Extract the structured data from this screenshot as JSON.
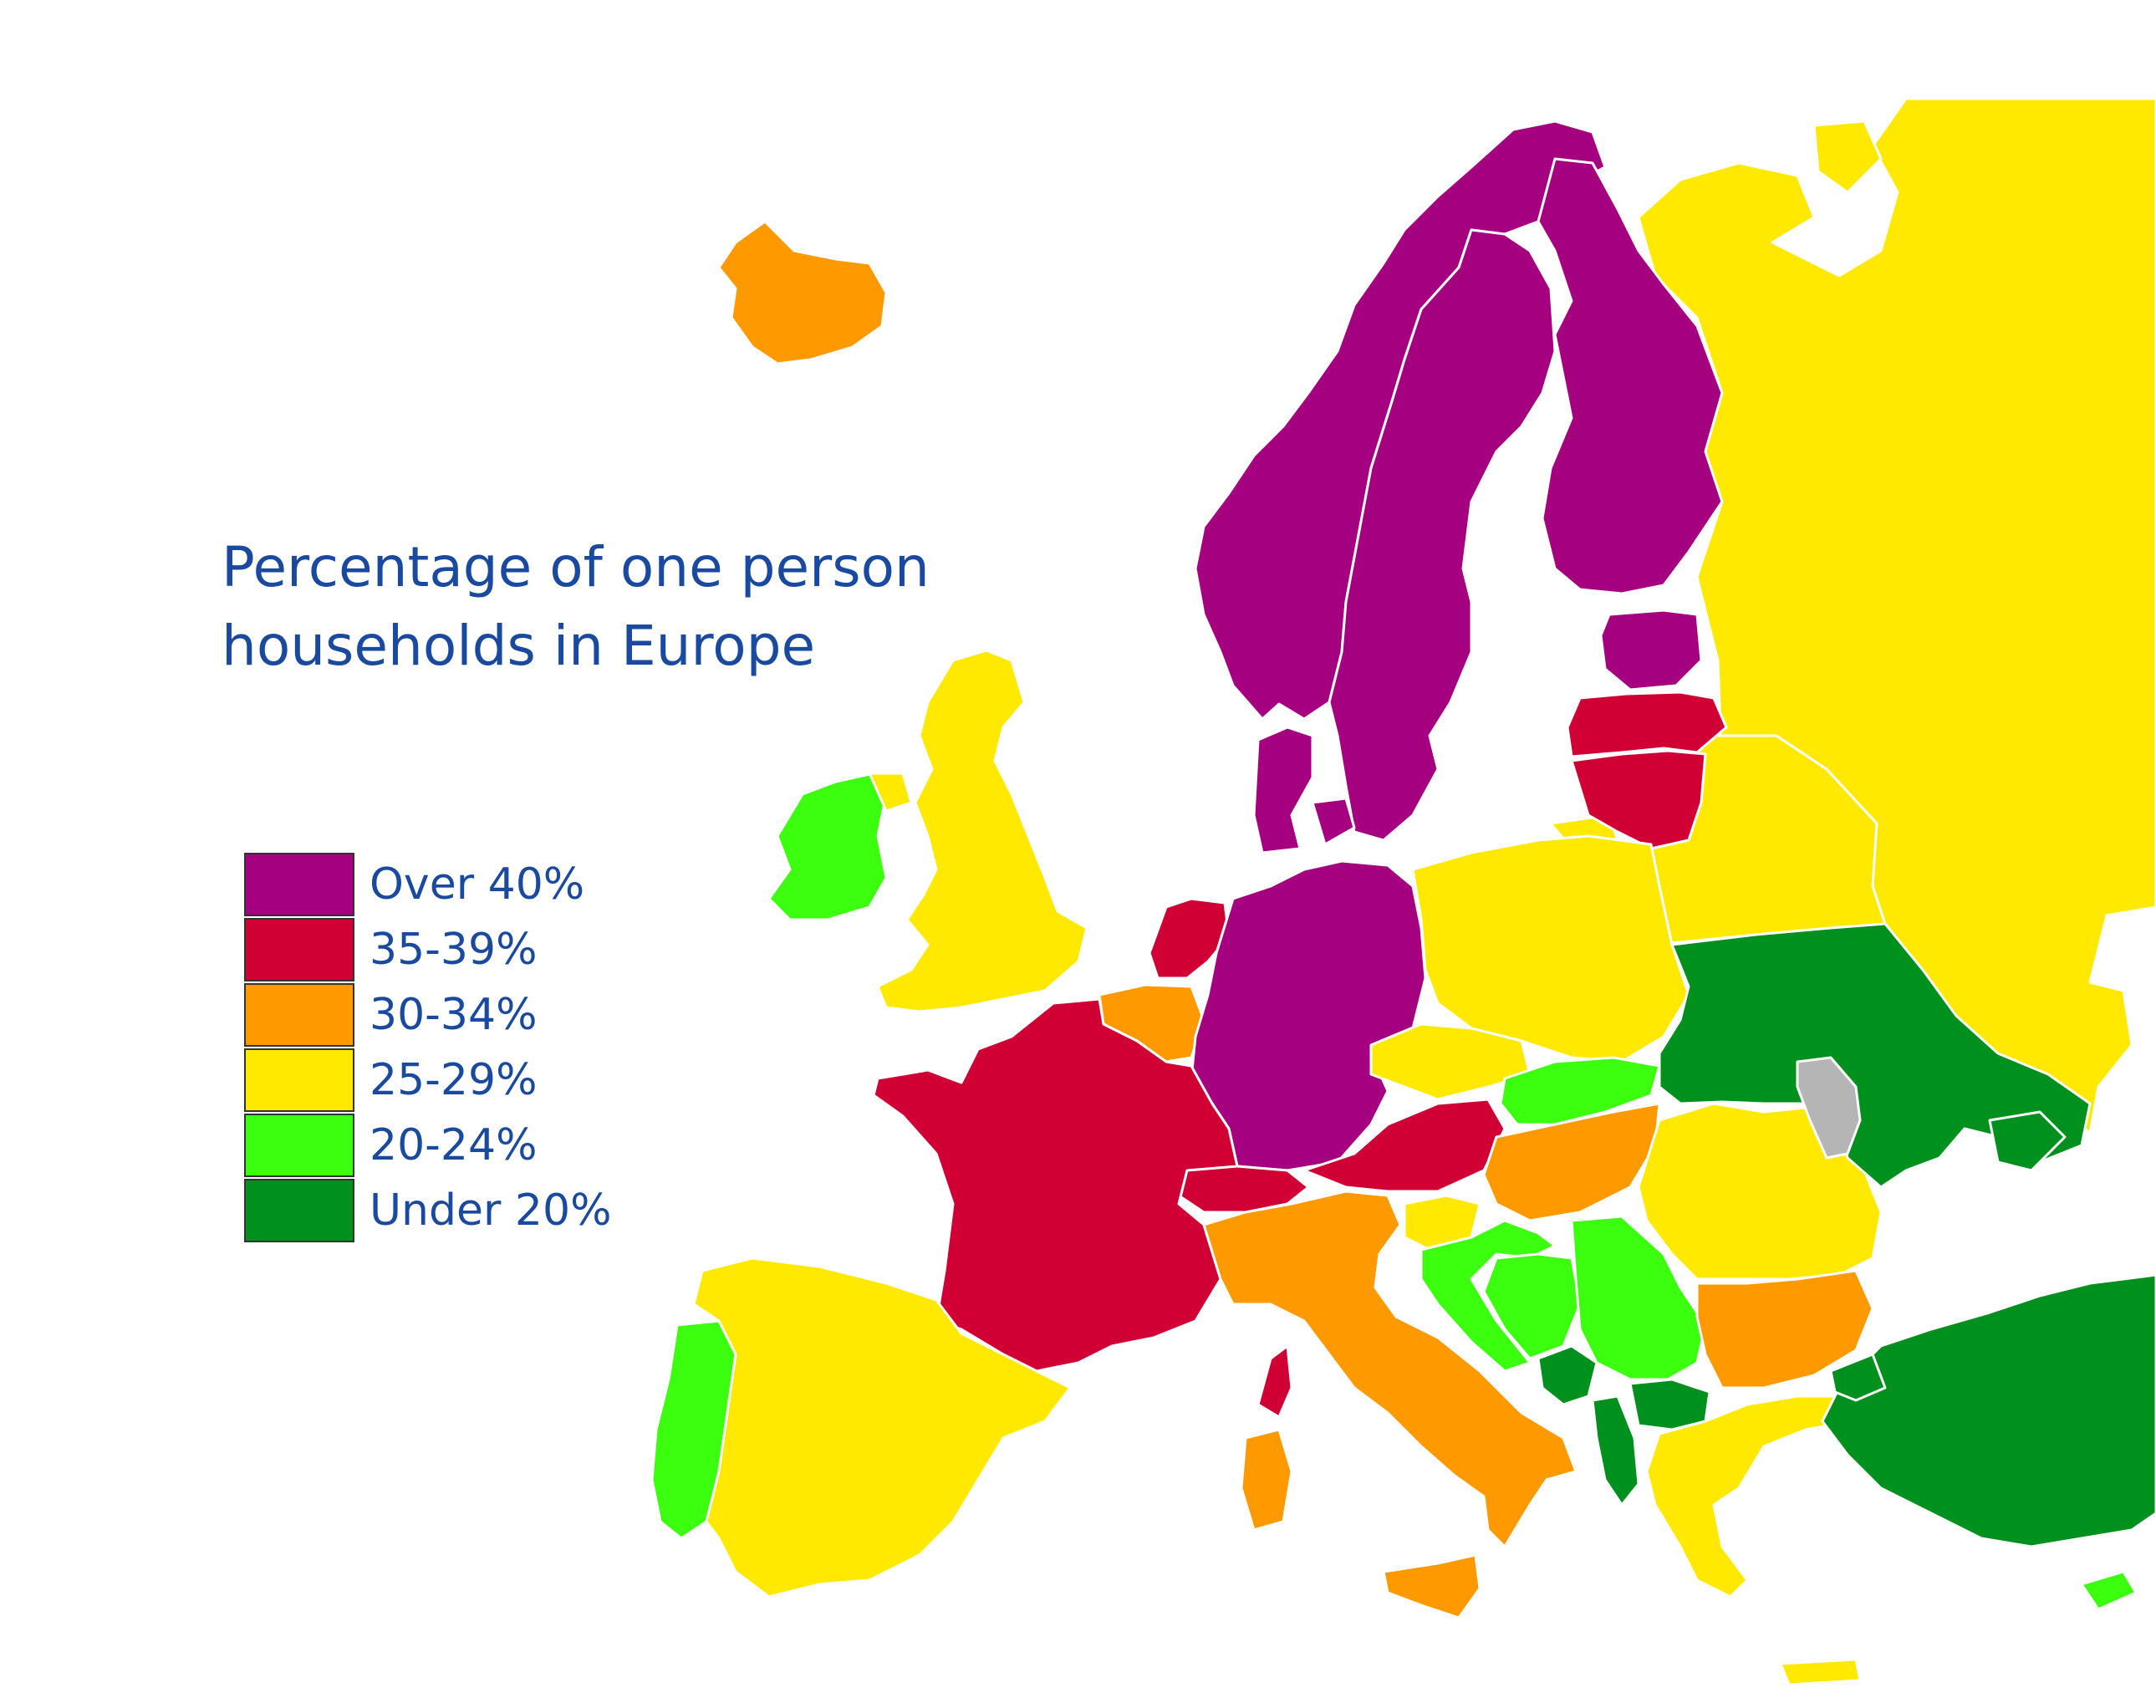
{
  "title": "Percentage of one person\nhouseholds in Europe",
  "legend": [
    {
      "label": "Over 40%",
      "color": "#a5007f"
    },
    {
      "label": "35-39%",
      "color": "#d10034"
    },
    {
      "label": "30-34%",
      "color": "#ff9900"
    },
    {
      "label": "25-29%",
      "color": "#ffe900"
    },
    {
      "label": "20-24%",
      "color": "#3cff0f"
    },
    {
      "label": "Under 20%",
      "color": "#00901e"
    }
  ],
  "no_data_color": "#b5b5b5",
  "countries": [
    {
      "name": "Norway",
      "category": "Over 40%"
    },
    {
      "name": "Sweden",
      "category": "Over 40%"
    },
    {
      "name": "Finland",
      "category": "Over 40%"
    },
    {
      "name": "Denmark",
      "category": "Over 40%"
    },
    {
      "name": "Estonia",
      "category": "Over 40%"
    },
    {
      "name": "Germany",
      "category": "Over 40%"
    },
    {
      "name": "Latvia",
      "category": "35-39%"
    },
    {
      "name": "Lithuania",
      "category": "35-39%"
    },
    {
      "name": "Netherlands",
      "category": "35-39%"
    },
    {
      "name": "France",
      "category": "35-39%"
    },
    {
      "name": "Switzerland",
      "category": "35-39%"
    },
    {
      "name": "Austria",
      "category": "35-39%"
    },
    {
      "name": "Corsica",
      "category": "35-39%"
    },
    {
      "name": "Iceland",
      "category": "30-34%"
    },
    {
      "name": "Belgium",
      "category": "30-34%"
    },
    {
      "name": "Italy",
      "category": "30-34%"
    },
    {
      "name": "Sardinia",
      "category": "30-34%"
    },
    {
      "name": "Sicily",
      "category": "30-34%"
    },
    {
      "name": "Hungary",
      "category": "30-34%"
    },
    {
      "name": "Bulgaria",
      "category": "30-34%"
    },
    {
      "name": "United Kingdom",
      "category": "25-29%"
    },
    {
      "name": "Spain",
      "category": "25-29%"
    },
    {
      "name": "Poland",
      "category": "25-29%"
    },
    {
      "name": "Czechia",
      "category": "25-29%"
    },
    {
      "name": "Slovenia",
      "category": "25-29%"
    },
    {
      "name": "Romania",
      "category": "25-29%"
    },
    {
      "name": "Greece",
      "category": "25-29%"
    },
    {
      "name": "Belarus",
      "category": "25-29%"
    },
    {
      "name": "Russia",
      "category": "25-29%"
    },
    {
      "name": "Ireland",
      "category": "20-24%"
    },
    {
      "name": "Portugal",
      "category": "20-24%"
    },
    {
      "name": "Slovakia",
      "category": "20-24%"
    },
    {
      "name": "Croatia",
      "category": "20-24%"
    },
    {
      "name": "Bosnia and Herzegovina",
      "category": "20-24%"
    },
    {
      "name": "Serbia",
      "category": "20-24%"
    },
    {
      "name": "Cyprus",
      "category": "20-24%"
    },
    {
      "name": "Ukraine",
      "category": "Under 20%"
    },
    {
      "name": "Montenegro",
      "category": "Under 20%"
    },
    {
      "name": "Albania",
      "category": "Under 20%"
    },
    {
      "name": "North Macedonia",
      "category": "Under 20%"
    },
    {
      "name": "Turkey",
      "category": "Under 20%"
    },
    {
      "name": "Moldova",
      "category": "no data"
    }
  ]
}
